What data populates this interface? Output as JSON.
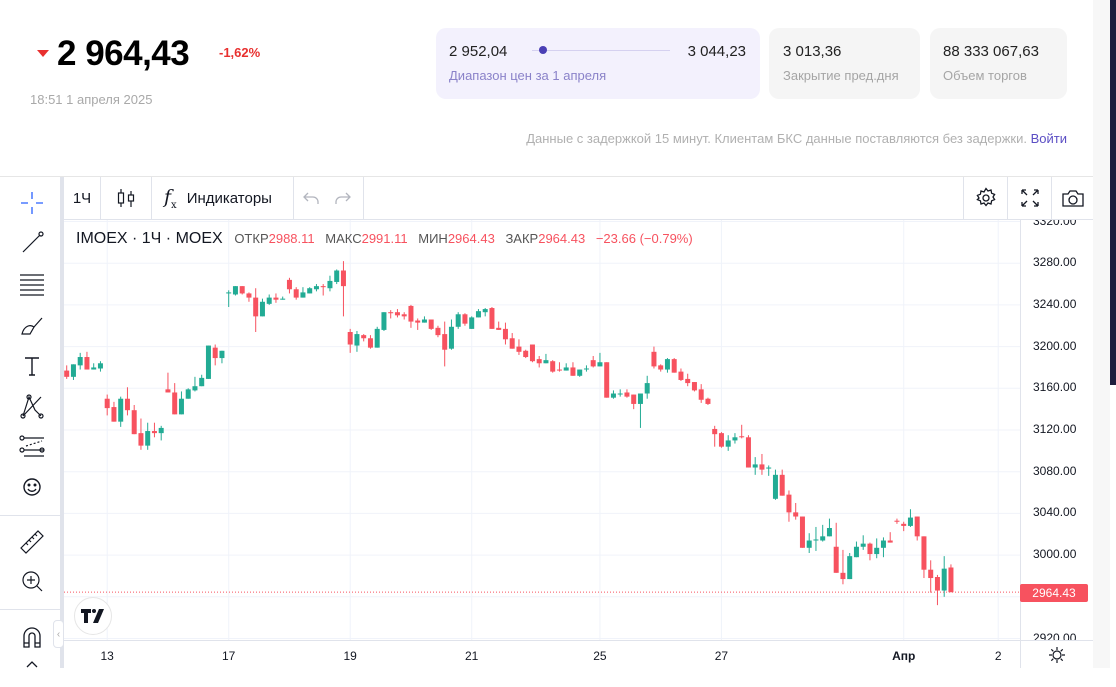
{
  "quote": {
    "price": "2 964,43",
    "change": "-1,62%",
    "time": "18:51 1 апреля 2025",
    "direction_icon": "triangle-down-icon"
  },
  "cards": {
    "range": {
      "low": "2 952,04",
      "high": "3 044,23",
      "label": "Диапазон цен за 1 апреля",
      "position": 0.08
    },
    "prev_close": {
      "value": "3 013,36",
      "label": "Закрытие пред.дня"
    },
    "volume": {
      "value": "88 333 067,63",
      "label": "Объем торгов"
    }
  },
  "notice": {
    "text": "Данные с задержкой 15 минут. Клиентам БКС данные поставляются без задержки.",
    "link": "Войти"
  },
  "toolbar": {
    "interval": "1Ч",
    "indicators": "Индикаторы"
  },
  "legend": {
    "symbol": "IMOEX · 1Ч · MOEX",
    "open_label": "ОТКР",
    "open": "2988.11",
    "high_label": "МАКС",
    "high": "2991.11",
    "low_label": "МИН",
    "low": "2964.43",
    "close_label": "ЗАКР",
    "close": "2964.43",
    "change": "−23.66 (−0.79%)"
  },
  "colors": {
    "up": "#22ab94",
    "down": "#f7525f",
    "accent": "#5b4ec4"
  },
  "chart_data": {
    "type": "candlestick",
    "title": "IMOEX · 1Ч · MOEX",
    "ylim": [
      2920,
      3320
    ],
    "y_ticks": [
      "3320.00",
      "3280.00",
      "3240.00",
      "3200.00",
      "3160.00",
      "3120.00",
      "3080.00",
      "3040.00",
      "3000.00",
      "2960.00",
      "2920.00"
    ],
    "y_tick_values": [
      3320,
      3280,
      3240,
      3200,
      3160,
      3120,
      3080,
      3040,
      3000,
      2960,
      2920
    ],
    "x_ticks": [
      {
        "label": "13",
        "index": 6
      },
      {
        "label": "17",
        "index": 24
      },
      {
        "label": "19",
        "index": 42
      },
      {
        "label": "21",
        "index": 60
      },
      {
        "label": "25",
        "index": 79
      },
      {
        "label": "27",
        "index": 97
      },
      {
        "label": "Апр",
        "index": 124
      },
      {
        "label": "2",
        "index": 138
      }
    ],
    "last_price": "2964.43",
    "last_value": 2964.43,
    "ohlc": [
      [
        3177,
        3182,
        3169,
        3171
      ],
      [
        3171,
        3183,
        3168,
        3183
      ],
      [
        3182,
        3194,
        3178,
        3190
      ],
      [
        3190,
        3195,
        3178,
        3178
      ],
      [
        3178,
        3184,
        3178,
        3180
      ],
      [
        3179,
        3186,
        3176,
        3184
      ],
      [
        3150,
        3154,
        3134,
        3141
      ],
      [
        3142,
        3147,
        3128,
        3128
      ],
      [
        3128,
        3152,
        3123,
        3150
      ],
      [
        3150,
        3161,
        3134,
        3139
      ],
      [
        3139,
        3144,
        3116,
        3116
      ],
      [
        3117,
        3131,
        3101,
        3105
      ],
      [
        3105,
        3127,
        3101,
        3119
      ],
      [
        3119,
        3127,
        3113,
        3117
      ],
      [
        3117,
        3124,
        3110,
        3122
      ],
      [
        3159,
        3175,
        3156,
        3156
      ],
      [
        3156,
        3165,
        3135,
        3135
      ],
      [
        3135,
        3157,
        3135,
        3150
      ],
      [
        3150,
        3160,
        3150,
        3159
      ],
      [
        3158,
        3171,
        3157,
        3162
      ],
      [
        3162,
        3173,
        3162,
        3170
      ],
      [
        3169,
        3201,
        3169,
        3201
      ],
      [
        3199,
        3202,
        3182,
        3189
      ],
      [
        3189,
        3196,
        3184,
        3196
      ],
      [
        3251,
        3254,
        3238,
        3252
      ],
      [
        3250,
        3258,
        3249,
        3258
      ],
      [
        3258,
        3258,
        3250,
        3251
      ],
      [
        3251,
        3252,
        3243,
        3247
      ],
      [
        3247,
        3256,
        3214,
        3229
      ],
      [
        3229,
        3246,
        3229,
        3243
      ],
      [
        3241,
        3250,
        3240,
        3247
      ],
      [
        3247,
        3251,
        3242,
        3245
      ],
      [
        3245,
        3248,
        3245,
        3246
      ],
      [
        3264,
        3266,
        3251,
        3255
      ],
      [
        3255,
        3257,
        3245,
        3247
      ],
      [
        3247,
        3257,
        3247,
        3252
      ],
      [
        3251,
        3257,
        3251,
        3256
      ],
      [
        3255,
        3260,
        3253,
        3258
      ],
      [
        3258,
        3260,
        3249,
        3257
      ],
      [
        3256,
        3268,
        3253,
        3263
      ],
      [
        3262,
        3274,
        3260,
        3273
      ],
      [
        3273,
        3282,
        3229,
        3258
      ],
      [
        3214,
        3217,
        3194,
        3202
      ],
      [
        3201,
        3215,
        3195,
        3212
      ],
      [
        3211,
        3212,
        3205,
        3208
      ],
      [
        3208,
        3211,
        3198,
        3199
      ],
      [
        3199,
        3219,
        3199,
        3217
      ],
      [
        3216,
        3233,
        3215,
        3233
      ],
      [
        3233,
        3235,
        3227,
        3232
      ],
      [
        3233,
        3236,
        3228,
        3230
      ],
      [
        3231,
        3233,
        3226,
        3229
      ],
      [
        3239,
        3240,
        3218,
        3224
      ],
      [
        3225,
        3227,
        3216,
        3223
      ],
      [
        3223,
        3229,
        3223,
        3226
      ],
      [
        3226,
        3226,
        3216,
        3217
      ],
      [
        3218,
        3220,
        3209,
        3211
      ],
      [
        3212,
        3224,
        3181,
        3197
      ],
      [
        3198,
        3226,
        3197,
        3219
      ],
      [
        3219,
        3233,
        3217,
        3231
      ],
      [
        3231,
        3232,
        3220,
        3222
      ],
      [
        3217,
        3229,
        3217,
        3228
      ],
      [
        3228,
        3236,
        3228,
        3234
      ],
      [
        3233,
        3237,
        3229,
        3236
      ],
      [
        3237,
        3238,
        3217,
        3217
      ],
      [
        3218,
        3224,
        3216,
        3216
      ],
      [
        3217,
        3223,
        3202,
        3207
      ],
      [
        3208,
        3213,
        3198,
        3198
      ],
      [
        3200,
        3207,
        3192,
        3195
      ],
      [
        3196,
        3197,
        3189,
        3190
      ],
      [
        3202,
        3202,
        3185,
        3186
      ],
      [
        3188,
        3191,
        3180,
        3184
      ],
      [
        3184,
        3193,
        3184,
        3187
      ],
      [
        3186,
        3187,
        3175,
        3176
      ],
      [
        3178,
        3185,
        3176,
        3177
      ],
      [
        3177,
        3184,
        3177,
        3180
      ],
      [
        3180,
        3185,
        3172,
        3172
      ],
      [
        3172,
        3178,
        3171,
        3178
      ],
      [
        3179,
        3182,
        3176,
        3179
      ],
      [
        3187,
        3191,
        3180,
        3181
      ],
      [
        3181,
        3194,
        3181,
        3185
      ],
      [
        3185,
        3185,
        3151,
        3151
      ],
      [
        3151,
        3158,
        3150,
        3155
      ],
      [
        3155,
        3159,
        3152,
        3155
      ],
      [
        3156,
        3159,
        3151,
        3152
      ],
      [
        3154,
        3154,
        3140,
        3145
      ],
      [
        3145,
        3155,
        3122,
        3155
      ],
      [
        3155,
        3172,
        3150,
        3165
      ],
      [
        3195,
        3200,
        3179,
        3181
      ],
      [
        3182,
        3183,
        3176,
        3178
      ],
      [
        3178,
        3189,
        3175,
        3188
      ],
      [
        3188,
        3189,
        3175,
        3175
      ],
      [
        3176,
        3179,
        3167,
        3168
      ],
      [
        3169,
        3174,
        3162,
        3165
      ],
      [
        3166,
        3166,
        3157,
        3158
      ],
      [
        3159,
        3164,
        3146,
        3149
      ],
      [
        3150,
        3151,
        3144,
        3145
      ],
      [
        3121,
        3124,
        3104,
        3116
      ],
      [
        3117,
        3118,
        3103,
        3104
      ],
      [
        3104,
        3115,
        3100,
        3110
      ],
      [
        3110,
        3117,
        3107,
        3113
      ],
      [
        3114,
        3125,
        3112,
        3113
      ],
      [
        3113,
        3115,
        3084,
        3084
      ],
      [
        3084,
        3094,
        3077,
        3087
      ],
      [
        3087,
        3097,
        3077,
        3082
      ],
      [
        3083,
        3086,
        3076,
        3084
      ],
      [
        3054,
        3082,
        3053,
        3077
      ],
      [
        3077,
        3082,
        3057,
        3057
      ],
      [
        3058,
        3062,
        3032,
        3041
      ],
      [
        3041,
        3050,
        3034,
        3037
      ],
      [
        3037,
        3037,
        3007,
        3007
      ],
      [
        3007,
        3021,
        3002,
        3014
      ],
      [
        3014,
        3027,
        3004,
        3015
      ],
      [
        3014,
        3029,
        3013,
        3018
      ],
      [
        3018,
        3035,
        3018,
        3026
      ],
      [
        3008,
        3031,
        2983,
        2983
      ],
      [
        2983,
        3005,
        2972,
        2977
      ],
      [
        2977,
        3002,
        2977,
        2999
      ],
      [
        2998,
        3013,
        2998,
        3008
      ],
      [
        3008,
        3019,
        3005,
        3011
      ],
      [
        3011,
        3012,
        2995,
        3001
      ],
      [
        3001,
        3016,
        2997,
        3007
      ],
      [
        3007,
        3017,
        2998,
        3014
      ],
      [
        3014,
        3022,
        3012,
        3012
      ],
      [
        3033,
        3035,
        3030,
        3032
      ],
      [
        3030,
        3032,
        3023,
        3028
      ],
      [
        3028,
        3044,
        3027,
        3036
      ],
      [
        3037,
        3037,
        3014,
        3018
      ],
      [
        3018,
        3018,
        2978,
        2986
      ],
      [
        2986,
        2995,
        2964,
        2978
      ],
      [
        2979,
        2981,
        2952,
        2966
      ],
      [
        2966,
        2999,
        2960,
        2987
      ],
      [
        2988.11,
        2991.11,
        2964.43,
        2964.43
      ]
    ]
  }
}
